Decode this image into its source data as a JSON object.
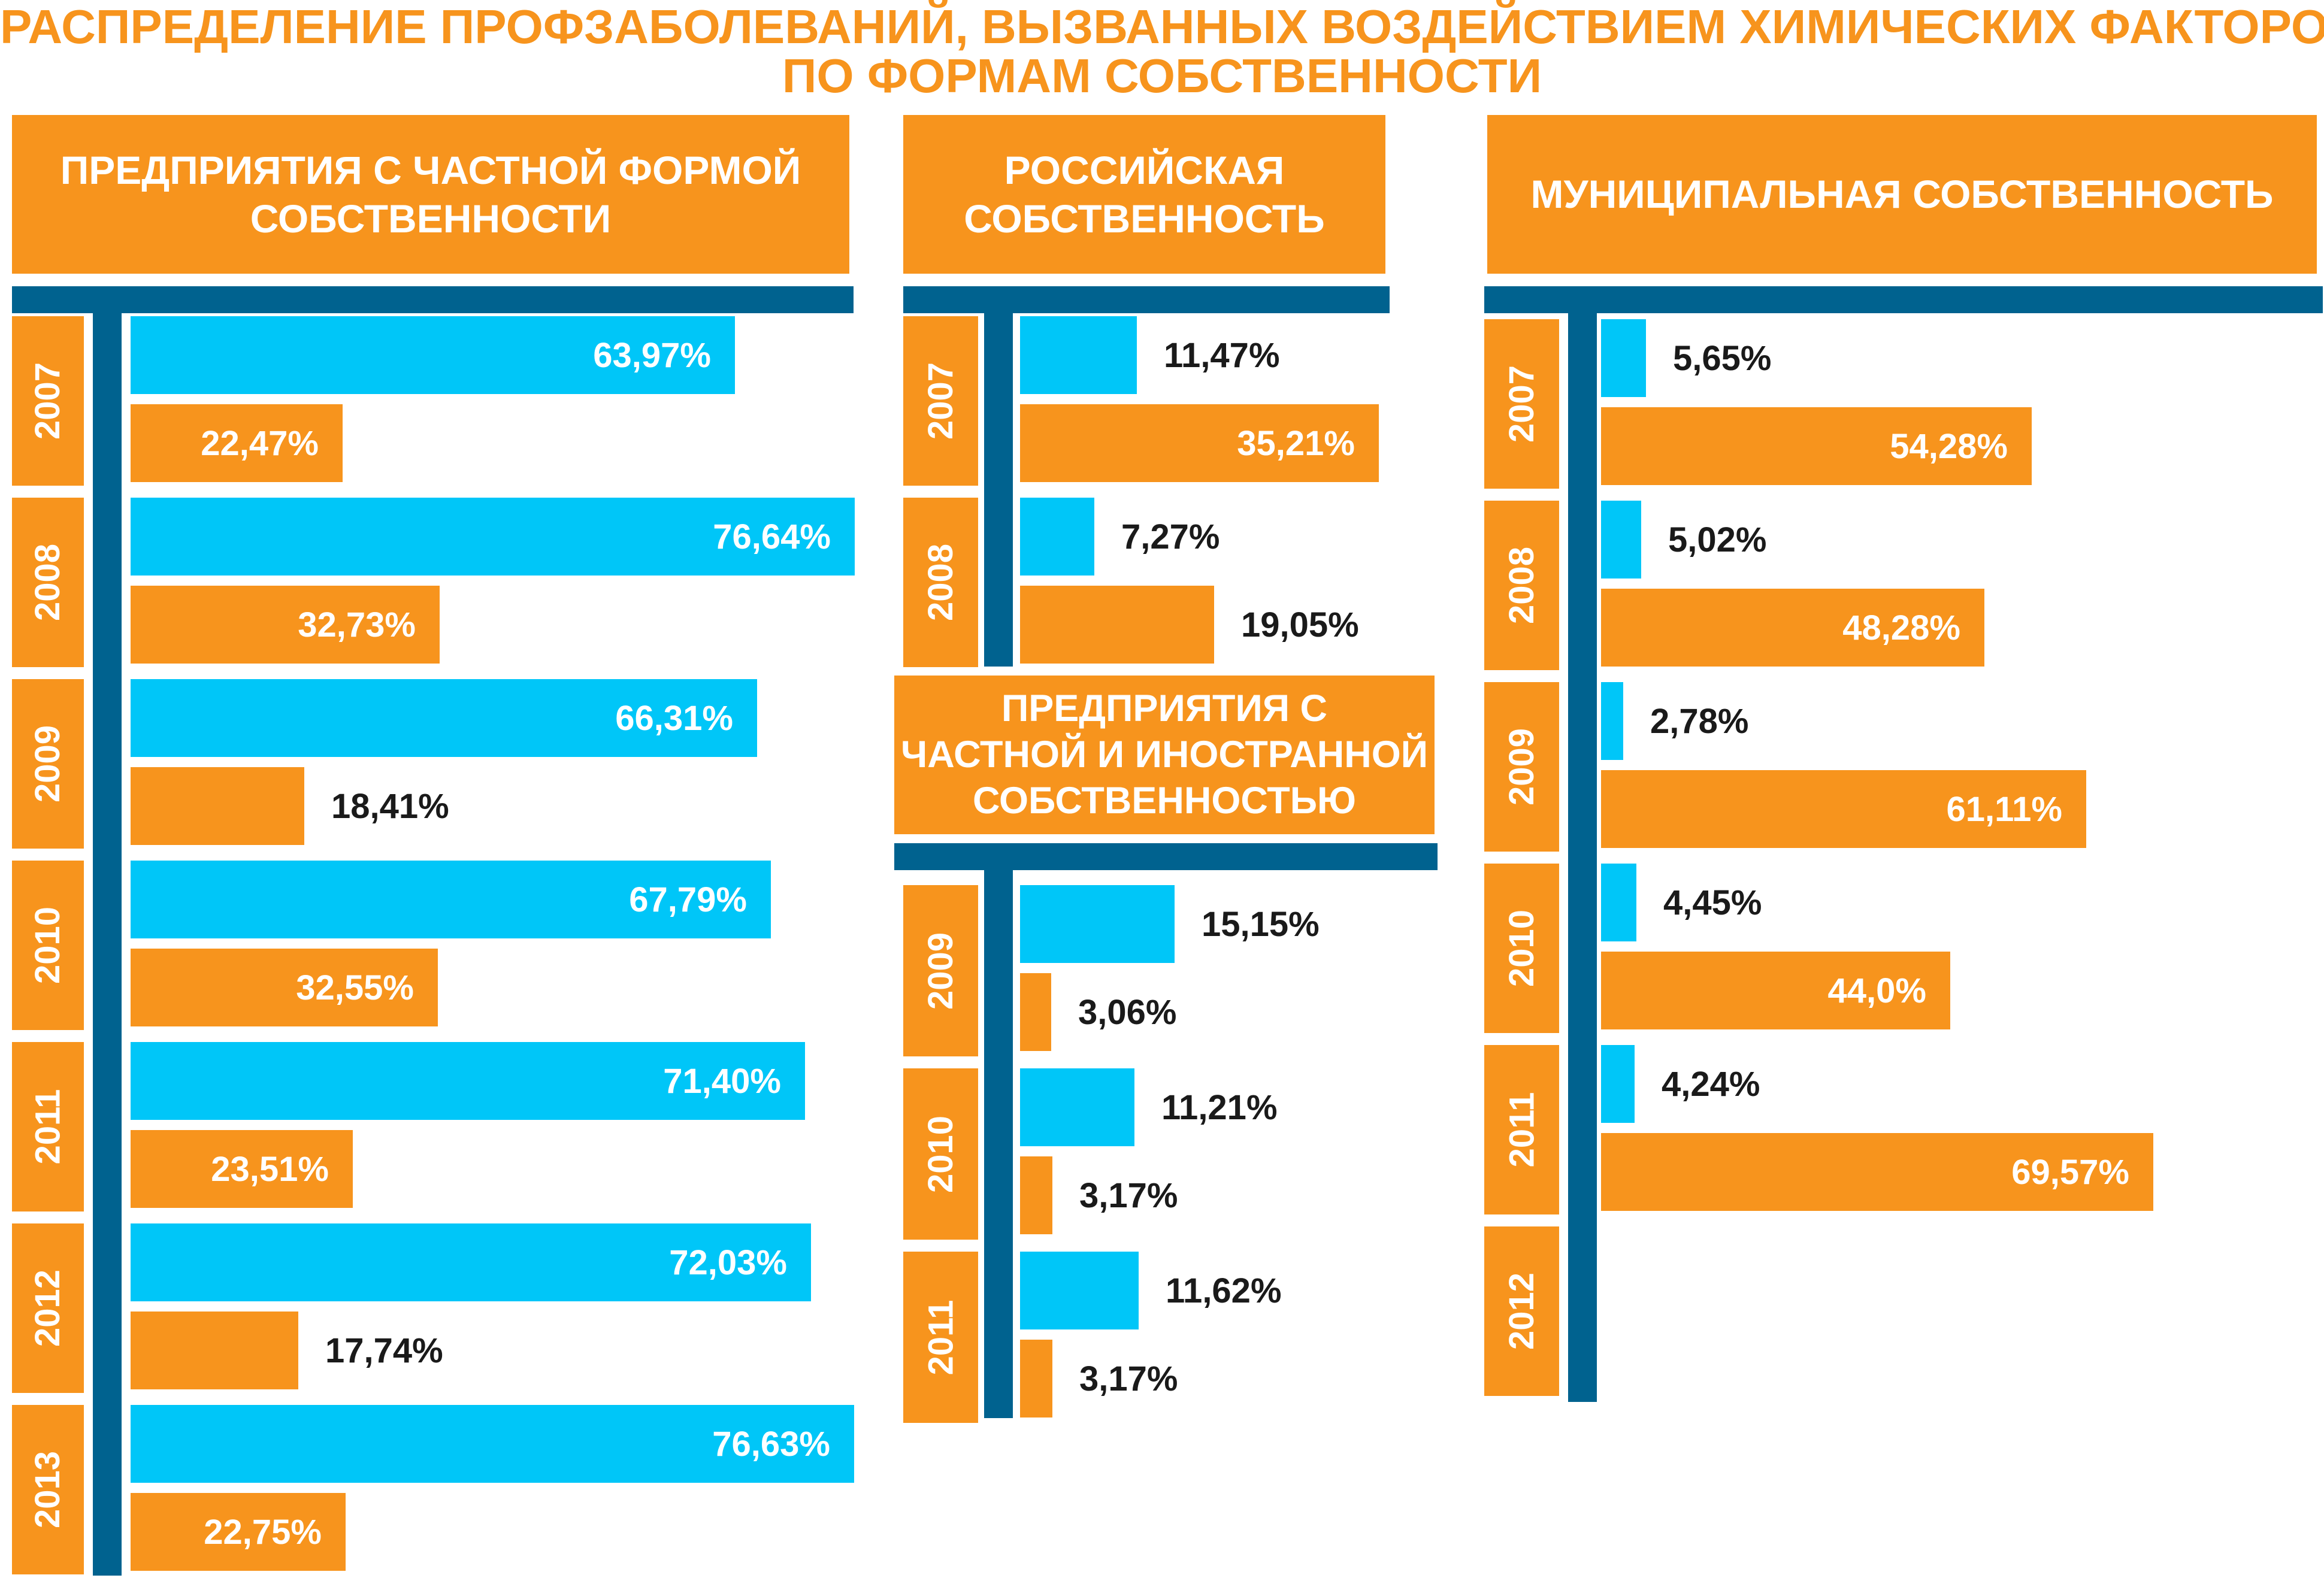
{
  "chart_data": {
    "type": "bar",
    "title": "РАСПРЕДЕЛЕНИЕ ПРОФЗАБОЛЕВАНИЙ, ВЫЗВАННЫХ ВОЗДЕЙСТВИЕМ ХИМИЧЕСКИХ ФАКТОРОВ, ПО ФОРМАМ СОБСТВЕННОСТИ",
    "title_lines": [
      "РАСПРЕДЕЛЕНИЕ ПРОФЗАБОЛЕВАНИЙ, ВЫЗВАННЫХ ВОЗДЕЙСТВИЕМ ХИМИЧЕСКИХ ФАКТОРОВ,",
      "ПО ФОРМАМ СОБСТВЕННОСТИ"
    ],
    "orientation": "horizontal",
    "panels": [
      {
        "id": "private",
        "title_lines": [
          "ПРЕДПРИЯТИЯ С ЧАСТНОЙ ФОРМОЙ",
          "СОБСТВЕННОСТИ"
        ],
        "categories": [
          "2007",
          "2008",
          "2009",
          "2010",
          "2011",
          "2012",
          "2013"
        ],
        "series": [
          {
            "values": [
              63.97,
              76.64,
              66.31,
              67.79,
              71.4,
              72.03,
              76.63
            ],
            "labels": [
              "63,97%",
              "76,64%",
              "66,31%",
              "67,79%",
              "71,40%",
              "72,03%",
              "76,63%"
            ]
          },
          {
            "values": [
              22.47,
              32.73,
              18.41,
              32.55,
              23.51,
              17.74,
              22.75
            ],
            "labels": [
              "22,47%",
              "32,73%",
              "18,41%",
              "32,55%",
              "23,51%",
              "17,74%",
              "22,75%"
            ]
          }
        ]
      },
      {
        "id": "russian",
        "title_lines": [
          "РОССИЙСКАЯ",
          "СОБСТВЕННОСТЬ"
        ],
        "categories": [
          "2007",
          "2008"
        ],
        "series": [
          {
            "values": [
              11.47,
              7.27
            ],
            "labels": [
              "11,47%",
              "7,27%"
            ]
          },
          {
            "values": [
              35.21,
              19.05
            ],
            "labels": [
              "35,21%",
              "19,05%"
            ]
          }
        ]
      },
      {
        "id": "foreign",
        "title_lines": [
          "ПРЕДПРИЯТИЯ С",
          "ЧАСТНОЙ И ИНОСТРАННОЙ",
          "СОБСТВЕННОСТЬЮ"
        ],
        "categories": [
          "2009",
          "2010",
          "2011"
        ],
        "series": [
          {
            "values": [
              15.15,
              11.21,
              11.62
            ],
            "labels": [
              "15,15%",
              "11,21%",
              "11,62%"
            ]
          },
          {
            "values": [
              3.06,
              3.17,
              3.17
            ],
            "labels": [
              "3,06%",
              "3,17%",
              "3,17%"
            ]
          }
        ]
      },
      {
        "id": "municipal",
        "title_lines": [
          "МУНИЦИПАЛЬНАЯ СОБСТВЕННОСТЬ"
        ],
        "categories": [
          "2007",
          "2008",
          "2009",
          "2010",
          "2011",
          "2012"
        ],
        "series": [
          {
            "values": [
              5.65,
              5.02,
              2.78,
              4.45,
              4.24,
              null
            ],
            "labels": [
              "5,65%",
              "5,02%",
              "2,78%",
              "4,45%",
              "4,24%",
              ""
            ]
          },
          {
            "values": [
              54.28,
              48.28,
              61.11,
              44.0,
              69.57,
              null
            ],
            "labels": [
              "54,28%",
              "48,28%",
              "61,11%",
              "44,0%",
              "69,57%",
              ""
            ]
          }
        ]
      }
    ],
    "colors": {
      "series_1": "#00c6f8",
      "series_2": "#f7941d",
      "header": "#f7941d",
      "axis": "#00628f",
      "title": "#f7941d"
    },
    "legend": "none",
    "grid": false
  }
}
